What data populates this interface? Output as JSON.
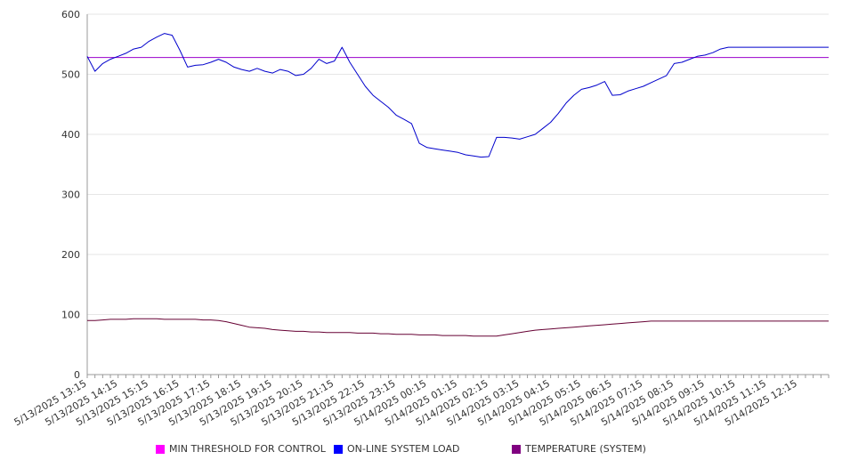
{
  "chart_data": {
    "type": "line",
    "title": "",
    "xlabel": "",
    "ylabel": "",
    "ylim": [
      0,
      600
    ],
    "yticks": [
      0,
      100,
      200,
      300,
      400,
      500,
      600
    ],
    "grid": "horizontal",
    "legend_position": "bottom",
    "x_tick_labels": [
      "5/13/2025 13:15",
      "5/13/2025 14:15",
      "5/13/2025 15:15",
      "5/13/2025 16:15",
      "5/13/2025 17:15",
      "5/13/2025 18:15",
      "5/13/2025 19:15",
      "5/13/2025 20:15",
      "5/13/2025 21:15",
      "5/13/2025 22:15",
      "5/13/2025 23:15",
      "5/14/2025 00:15",
      "5/14/2025 01:15",
      "5/14/2025 02:15",
      "5/14/2025 03:15",
      "5/14/2025 04:15",
      "5/14/2025 05:15",
      "5/14/2025 06:15",
      "5/14/2025 07:15",
      "5/14/2025 08:15",
      "5/14/2025 09:15",
      "5/14/2025 10:15",
      "5/14/2025 11:15",
      "5/14/2025 12:15"
    ],
    "x_hours": [
      0,
      0.25,
      0.5,
      0.75,
      1,
      1.25,
      1.5,
      1.75,
      2,
      2.25,
      2.5,
      2.75,
      3,
      3.25,
      3.5,
      3.75,
      4,
      4.25,
      4.5,
      4.75,
      5,
      5.25,
      5.5,
      5.75,
      6,
      6.25,
      6.5,
      6.75,
      7,
      7.25,
      7.5,
      7.75,
      8,
      8.25,
      8.5,
      8.75,
      9,
      9.25,
      9.5,
      9.75,
      10,
      10.25,
      10.5,
      10.75,
      11,
      11.25,
      11.5,
      11.75,
      12,
      12.25,
      12.5,
      12.75,
      13,
      13.25,
      13.5,
      13.75,
      14,
      14.25,
      14.5,
      14.75,
      15,
      15.25,
      15.5,
      15.75,
      16,
      16.25,
      16.5,
      16.75,
      17,
      17.25,
      17.5,
      17.75,
      18,
      18.25,
      18.5,
      18.75,
      19,
      19.25,
      19.5,
      19.75,
      20,
      20.25,
      20.5,
      20.75,
      21,
      21.25,
      21.5,
      21.75,
      22,
      22.25,
      22.5,
      22.75,
      23,
      23.25,
      23.5,
      23.75,
      24
    ],
    "series": [
      {
        "name": "MIN THRESHOLD FOR CONTROL",
        "color": "#9900cc",
        "legend_color": "#ff00ff",
        "values": [
          528,
          528,
          528,
          528,
          528,
          528,
          528,
          528,
          528,
          528,
          528,
          528,
          528,
          528,
          528,
          528,
          528,
          528,
          528,
          528,
          528,
          528,
          528,
          528,
          528,
          528,
          528,
          528,
          528,
          528,
          528,
          528,
          528,
          528,
          528,
          528,
          528,
          528,
          528,
          528,
          528,
          528,
          528,
          528,
          528,
          528,
          528,
          528,
          528,
          528,
          528,
          528,
          528,
          528,
          528,
          528,
          528,
          528,
          528,
          528,
          528,
          528,
          528,
          528,
          528,
          528,
          528,
          528,
          528,
          528,
          528,
          528,
          528,
          528,
          528,
          528,
          528,
          528,
          528,
          528,
          528,
          528,
          528,
          528,
          528,
          528,
          528,
          528,
          528,
          528,
          528,
          528,
          528,
          528,
          528,
          528,
          528
        ]
      },
      {
        "name": "ON-LINE SYSTEM LOAD",
        "color": "#0000cc",
        "legend_color": "#0000ff",
        "values": [
          530,
          505,
          518,
          525,
          530,
          535,
          542,
          545,
          555,
          562,
          568,
          565,
          540,
          512,
          515,
          516,
          520,
          525,
          520,
          512,
          508,
          505,
          510,
          505,
          502,
          508,
          505,
          498,
          500,
          510,
          525,
          518,
          522,
          545,
          520,
          500,
          480,
          465,
          455,
          445,
          432,
          425,
          418,
          385,
          378,
          376,
          374,
          372,
          370,
          366,
          364,
          362,
          363,
          395,
          395,
          394,
          392,
          396,
          400,
          410,
          420,
          435,
          452,
          465,
          475,
          478,
          482,
          488,
          465,
          466,
          472,
          476,
          480,
          486,
          492,
          498,
          518,
          520,
          525,
          530,
          532,
          536,
          542,
          545,
          545,
          545,
          545,
          545,
          545,
          545,
          545,
          545,
          545,
          545,
          545,
          545,
          545
        ]
      },
      {
        "name": "TEMPERATURE (SYSTEM)",
        "color": "#660033",
        "legend_color": "#800080",
        "values": [
          90,
          90,
          91,
          92,
          92,
          92,
          93,
          93,
          93,
          93,
          92,
          92,
          92,
          92,
          92,
          91,
          91,
          90,
          88,
          85,
          82,
          79,
          78,
          77,
          75,
          74,
          73,
          72,
          72,
          71,
          71,
          70,
          70,
          70,
          70,
          69,
          69,
          69,
          68,
          68,
          67,
          67,
          67,
          66,
          66,
          66,
          65,
          65,
          65,
          65,
          64,
          64,
          64,
          64,
          66,
          68,
          70,
          72,
          74,
          75,
          76,
          77,
          78,
          79,
          80,
          81,
          82,
          83,
          84,
          85,
          86,
          87,
          88,
          89,
          89,
          89,
          89,
          89,
          89,
          89,
          89,
          89,
          89,
          89,
          89,
          89,
          89,
          89,
          89,
          89,
          89,
          89,
          89,
          89,
          89,
          89,
          89
        ]
      }
    ]
  }
}
